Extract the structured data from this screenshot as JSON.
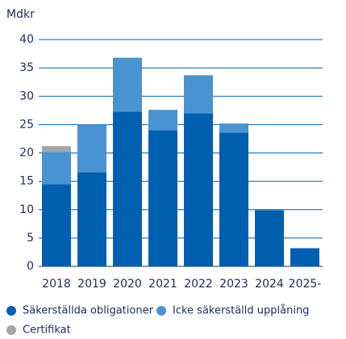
{
  "chart_data": {
    "type": "bar",
    "stacked": true,
    "y_label": "Mdkr",
    "categories": [
      "2018",
      "2019",
      "2020",
      "2021",
      "2022",
      "2023",
      "2024",
      "2025-"
    ],
    "series": [
      {
        "name": "Säkerställda obligationer",
        "color": "#005fae",
        "values": [
          14.5,
          16.6,
          27.3,
          24.0,
          27.0,
          23.6,
          9.9,
          3.2
        ]
      },
      {
        "name": "Icke säkerställd upplåning",
        "color": "#4a93d2",
        "values": [
          5.7,
          8.4,
          9.5,
          3.6,
          6.7,
          1.6,
          0,
          0
        ]
      },
      {
        "name": "Certifikat",
        "color": "#a6a6a6",
        "values": [
          1.0,
          0,
          0,
          0,
          0,
          0,
          0,
          0
        ]
      }
    ],
    "ylim": [
      0,
      40
    ],
    "yticks": [
      0,
      5,
      10,
      15,
      20,
      25,
      30,
      35,
      40
    ],
    "grid": true
  }
}
